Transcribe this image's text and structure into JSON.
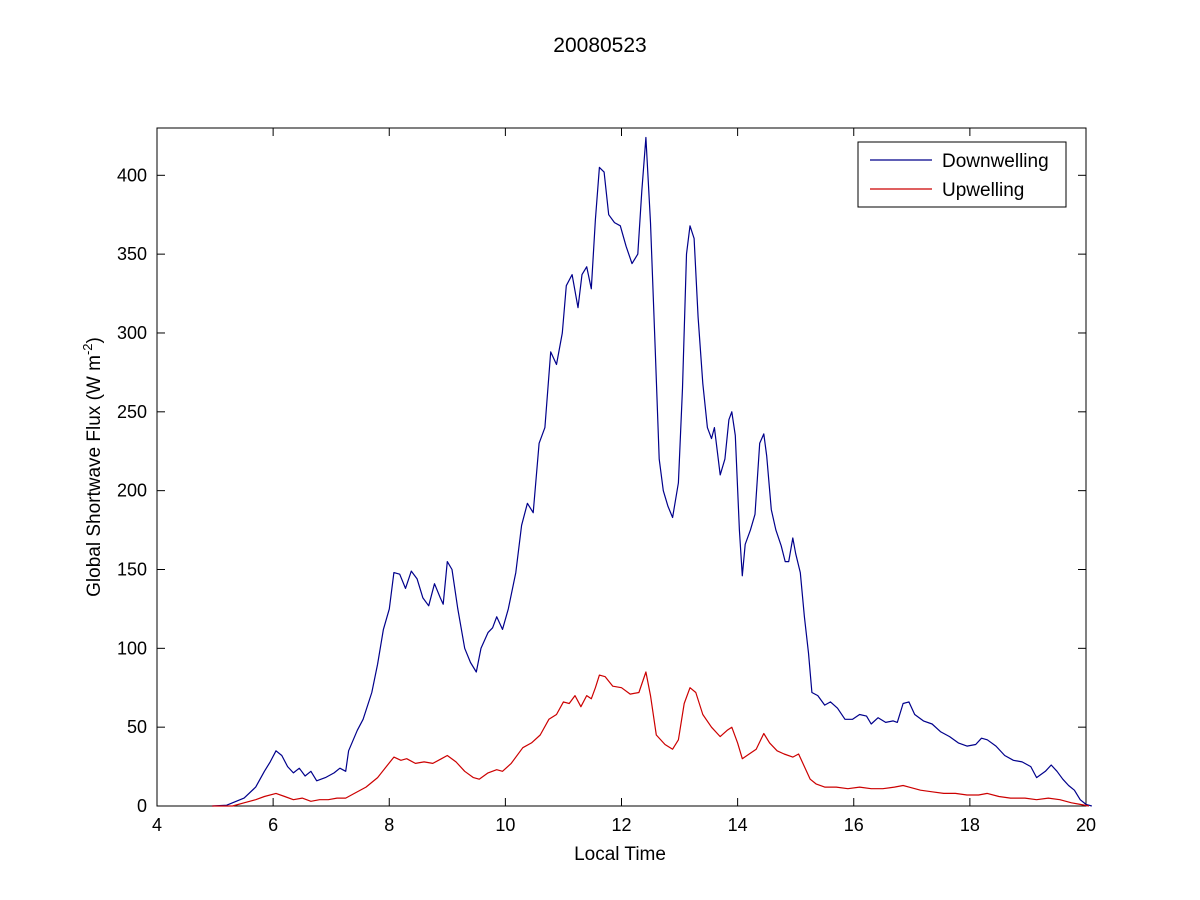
{
  "chart_data": {
    "type": "line",
    "title": "20080523",
    "xlabel": "Local Time",
    "ylabel": "Global Shortwave Flux (W m",
    "ylabel_sup": "-2",
    "ylabel_suffix": ")",
    "xlim": [
      4,
      20
    ],
    "ylim": [
      0,
      430
    ],
    "xticks": [
      4,
      6,
      8,
      10,
      12,
      14,
      16,
      18,
      20
    ],
    "yticks": [
      0,
      50,
      100,
      150,
      200,
      250,
      300,
      350,
      400
    ],
    "grid": false,
    "legend_position": "top-right",
    "series": [
      {
        "name": "Downwelling",
        "color": "#00008b",
        "points": [
          [
            4.95,
            0
          ],
          [
            5.2,
            0.5
          ],
          [
            5.3,
            2
          ],
          [
            5.5,
            5
          ],
          [
            5.7,
            12
          ],
          [
            5.85,
            22
          ],
          [
            5.95,
            28
          ],
          [
            6.05,
            35
          ],
          [
            6.15,
            32
          ],
          [
            6.25,
            25
          ],
          [
            6.35,
            21
          ],
          [
            6.45,
            24
          ],
          [
            6.55,
            19
          ],
          [
            6.65,
            22
          ],
          [
            6.75,
            16
          ],
          [
            6.9,
            18
          ],
          [
            7.05,
            21
          ],
          [
            7.15,
            24
          ],
          [
            7.25,
            22
          ],
          [
            7.3,
            35
          ],
          [
            7.45,
            48
          ],
          [
            7.55,
            55
          ],
          [
            7.7,
            72
          ],
          [
            7.8,
            90
          ],
          [
            7.9,
            112
          ],
          [
            8.0,
            125
          ],
          [
            8.08,
            148
          ],
          [
            8.18,
            147
          ],
          [
            8.28,
            138
          ],
          [
            8.38,
            149
          ],
          [
            8.48,
            144
          ],
          [
            8.58,
            132
          ],
          [
            8.68,
            127
          ],
          [
            8.78,
            141
          ],
          [
            8.88,
            132
          ],
          [
            8.93,
            128
          ],
          [
            9.0,
            155
          ],
          [
            9.08,
            150
          ],
          [
            9.18,
            125
          ],
          [
            9.3,
            100
          ],
          [
            9.4,
            91
          ],
          [
            9.5,
            85
          ],
          [
            9.58,
            100
          ],
          [
            9.7,
            110
          ],
          [
            9.78,
            113
          ],
          [
            9.85,
            120
          ],
          [
            9.95,
            112
          ],
          [
            10.05,
            125
          ],
          [
            10.18,
            148
          ],
          [
            10.28,
            178
          ],
          [
            10.38,
            192
          ],
          [
            10.48,
            186
          ],
          [
            10.58,
            230
          ],
          [
            10.68,
            240
          ],
          [
            10.78,
            288
          ],
          [
            10.88,
            280
          ],
          [
            10.98,
            300
          ],
          [
            11.05,
            330
          ],
          [
            11.15,
            337
          ],
          [
            11.25,
            316
          ],
          [
            11.32,
            337
          ],
          [
            11.4,
            342
          ],
          [
            11.48,
            328
          ],
          [
            11.55,
            372
          ],
          [
            11.62,
            405
          ],
          [
            11.7,
            402
          ],
          [
            11.78,
            375
          ],
          [
            11.88,
            370
          ],
          [
            11.98,
            368
          ],
          [
            12.08,
            355
          ],
          [
            12.18,
            344
          ],
          [
            12.28,
            350
          ],
          [
            12.35,
            390
          ],
          [
            12.42,
            424
          ],
          [
            12.5,
            370
          ],
          [
            12.58,
            290
          ],
          [
            12.65,
            220
          ],
          [
            12.72,
            200
          ],
          [
            12.8,
            190
          ],
          [
            12.88,
            183
          ],
          [
            12.98,
            205
          ],
          [
            13.05,
            265
          ],
          [
            13.12,
            350
          ],
          [
            13.18,
            368
          ],
          [
            13.25,
            360
          ],
          [
            13.32,
            310
          ],
          [
            13.4,
            268
          ],
          [
            13.48,
            240
          ],
          [
            13.55,
            233
          ],
          [
            13.6,
            240
          ],
          [
            13.7,
            210
          ],
          [
            13.78,
            220
          ],
          [
            13.85,
            245
          ],
          [
            13.9,
            250
          ],
          [
            13.96,
            235
          ],
          [
            14.03,
            175
          ],
          [
            14.08,
            146
          ],
          [
            14.13,
            166
          ],
          [
            14.22,
            175
          ],
          [
            14.3,
            185
          ],
          [
            14.38,
            230
          ],
          [
            14.45,
            236
          ],
          [
            14.5,
            222
          ],
          [
            14.58,
            188
          ],
          [
            14.66,
            175
          ],
          [
            14.75,
            165
          ],
          [
            14.82,
            155
          ],
          [
            14.88,
            155
          ],
          [
            14.95,
            170
          ],
          [
            15.0,
            160
          ],
          [
            15.08,
            148
          ],
          [
            15.15,
            120
          ],
          [
            15.22,
            97
          ],
          [
            15.28,
            72
          ],
          [
            15.38,
            70
          ],
          [
            15.5,
            64
          ],
          [
            15.6,
            66
          ],
          [
            15.72,
            62
          ],
          [
            15.85,
            55
          ],
          [
            15.98,
            55
          ],
          [
            16.1,
            58
          ],
          [
            16.22,
            57
          ],
          [
            16.3,
            52
          ],
          [
            16.42,
            56
          ],
          [
            16.55,
            53
          ],
          [
            16.68,
            54
          ],
          [
            16.75,
            53
          ],
          [
            16.85,
            65
          ],
          [
            16.95,
            66
          ],
          [
            17.05,
            58
          ],
          [
            17.2,
            54
          ],
          [
            17.35,
            52
          ],
          [
            17.5,
            47
          ],
          [
            17.65,
            44
          ],
          [
            17.8,
            40
          ],
          [
            17.95,
            38
          ],
          [
            18.1,
            39
          ],
          [
            18.2,
            43
          ],
          [
            18.3,
            42
          ],
          [
            18.45,
            38
          ],
          [
            18.6,
            32
          ],
          [
            18.75,
            29
          ],
          [
            18.9,
            28
          ],
          [
            19.05,
            25
          ],
          [
            19.15,
            18
          ],
          [
            19.3,
            22
          ],
          [
            19.4,
            26
          ],
          [
            19.5,
            22
          ],
          [
            19.6,
            17
          ],
          [
            19.7,
            13
          ],
          [
            19.8,
            10
          ],
          [
            19.9,
            4
          ],
          [
            20.0,
            1
          ],
          [
            20.1,
            0
          ]
        ]
      },
      {
        "name": "Upwelling",
        "color": "#cc0000",
        "points": [
          [
            4.95,
            0
          ],
          [
            5.3,
            0
          ],
          [
            5.5,
            2
          ],
          [
            5.7,
            4
          ],
          [
            5.85,
            6
          ],
          [
            6.05,
            8
          ],
          [
            6.2,
            6
          ],
          [
            6.35,
            4
          ],
          [
            6.5,
            5
          ],
          [
            6.65,
            3
          ],
          [
            6.8,
            4
          ],
          [
            6.95,
            4
          ],
          [
            7.1,
            5
          ],
          [
            7.25,
            5
          ],
          [
            7.4,
            8
          ],
          [
            7.6,
            12
          ],
          [
            7.8,
            18
          ],
          [
            7.95,
            25
          ],
          [
            8.08,
            31
          ],
          [
            8.2,
            29
          ],
          [
            8.3,
            30
          ],
          [
            8.45,
            27
          ],
          [
            8.6,
            28
          ],
          [
            8.75,
            27
          ],
          [
            8.9,
            30
          ],
          [
            9.0,
            32
          ],
          [
            9.15,
            28
          ],
          [
            9.3,
            22
          ],
          [
            9.45,
            18
          ],
          [
            9.55,
            17
          ],
          [
            9.7,
            21
          ],
          [
            9.85,
            23
          ],
          [
            9.95,
            22
          ],
          [
            10.1,
            27
          ],
          [
            10.3,
            37
          ],
          [
            10.45,
            40
          ],
          [
            10.6,
            45
          ],
          [
            10.75,
            55
          ],
          [
            10.88,
            58
          ],
          [
            11.0,
            66
          ],
          [
            11.1,
            65
          ],
          [
            11.2,
            70
          ],
          [
            11.3,
            63
          ],
          [
            11.4,
            70
          ],
          [
            11.48,
            68
          ],
          [
            11.55,
            75
          ],
          [
            11.62,
            83
          ],
          [
            11.72,
            82
          ],
          [
            11.85,
            76
          ],
          [
            12.0,
            75
          ],
          [
            12.15,
            71
          ],
          [
            12.3,
            72
          ],
          [
            12.42,
            85
          ],
          [
            12.5,
            70
          ],
          [
            12.6,
            45
          ],
          [
            12.75,
            39
          ],
          [
            12.88,
            36
          ],
          [
            12.98,
            42
          ],
          [
            13.08,
            65
          ],
          [
            13.18,
            75
          ],
          [
            13.28,
            72
          ],
          [
            13.4,
            58
          ],
          [
            13.55,
            50
          ],
          [
            13.7,
            44
          ],
          [
            13.82,
            48
          ],
          [
            13.9,
            50
          ],
          [
            14.0,
            40
          ],
          [
            14.08,
            30
          ],
          [
            14.2,
            33
          ],
          [
            14.32,
            36
          ],
          [
            14.45,
            46
          ],
          [
            14.55,
            40
          ],
          [
            14.68,
            35
          ],
          [
            14.8,
            33
          ],
          [
            14.95,
            31
          ],
          [
            15.05,
            33
          ],
          [
            15.15,
            25
          ],
          [
            15.25,
            17
          ],
          [
            15.35,
            14
          ],
          [
            15.5,
            12
          ],
          [
            15.7,
            12
          ],
          [
            15.9,
            11
          ],
          [
            16.1,
            12
          ],
          [
            16.3,
            11
          ],
          [
            16.5,
            11
          ],
          [
            16.7,
            12
          ],
          [
            16.85,
            13
          ],
          [
            16.95,
            12
          ],
          [
            17.15,
            10
          ],
          [
            17.35,
            9
          ],
          [
            17.55,
            8
          ],
          [
            17.75,
            8
          ],
          [
            17.95,
            7
          ],
          [
            18.15,
            7
          ],
          [
            18.3,
            8
          ],
          [
            18.5,
            6
          ],
          [
            18.7,
            5
          ],
          [
            18.95,
            5
          ],
          [
            19.15,
            4
          ],
          [
            19.35,
            5
          ],
          [
            19.55,
            4
          ],
          [
            19.75,
            2
          ],
          [
            19.9,
            1
          ],
          [
            20.05,
            0
          ]
        ]
      }
    ]
  }
}
